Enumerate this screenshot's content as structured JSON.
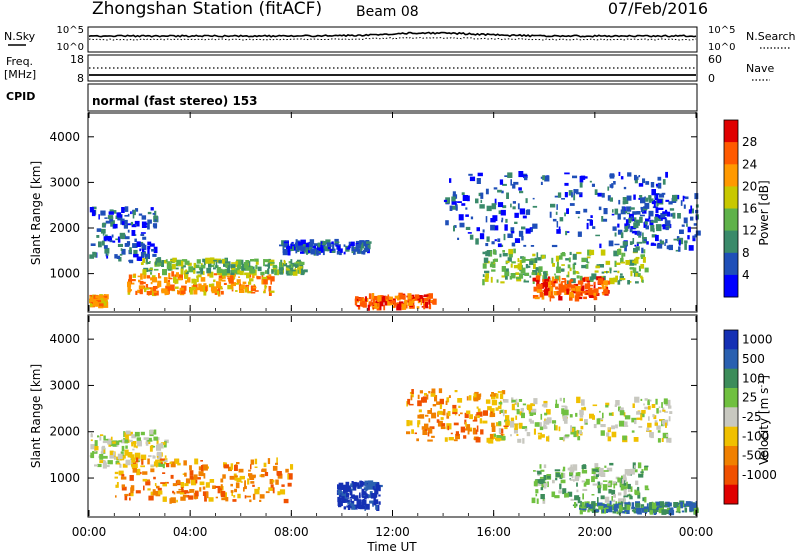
{
  "header": {
    "station": "Zhongshan Station (fitACF)",
    "beam": "Beam 08",
    "date": "07/Feb/2016"
  },
  "top_panel": {
    "left_label": "N.Sky",
    "left_ticks": [
      "10^5",
      "10^0"
    ],
    "right_ticks": [
      "10^5",
      "10^0"
    ],
    "right_label": "N.Search"
  },
  "freq_panel": {
    "left_label_1": "Freq.",
    "left_label_2": "[MHz]",
    "left_ticks": [
      "18",
      "8"
    ],
    "right_ticks": [
      "60",
      "0"
    ],
    "right_label": "Nave"
  },
  "cpid_panel": {
    "left_label": "CPID",
    "mode_text": "normal (fast stereo) 153"
  },
  "colors": {
    "power": [
      "#0000ff",
      "#1f4fb8",
      "#3a8a6a",
      "#5fb24a",
      "#c8c800",
      "#ff9900",
      "#ff5a00",
      "#e00000"
    ],
    "velocity": [
      "#1530b4",
      "#2a60b0",
      "#3c8c5a",
      "#70c040",
      "#c8c8c0",
      "#f0c000",
      "#f08000",
      "#f05000",
      "#e00000"
    ]
  },
  "chart_data": [
    {
      "type": "heatmap",
      "name": "power",
      "ylabel": "Slant Range [km]",
      "ylim": [
        180,
        4500
      ],
      "yticks": [
        "1000",
        "2000",
        "3000",
        "4000"
      ],
      "xlim": [
        "00:00",
        "24:00"
      ],
      "colorbar": {
        "label": "Power [dB]",
        "ticks": [
          "4",
          "8",
          "12",
          "16",
          "20",
          "24",
          "28"
        ]
      },
      "echo_regions": [
        {
          "t0": 0.0,
          "t1": 2.6,
          "r0": 1250,
          "r1": 2450,
          "level": 1
        },
        {
          "t0": 0.0,
          "t1": 0.6,
          "r0": 300,
          "r1": 500,
          "level": 5
        },
        {
          "t0": 1.5,
          "t1": 7.2,
          "r0": 560,
          "r1": 1000,
          "level": 5
        },
        {
          "t0": 2.0,
          "t1": 8.5,
          "r0": 1000,
          "r1": 1300,
          "level": 3
        },
        {
          "t0": 7.5,
          "t1": 11.0,
          "r0": 1450,
          "r1": 1700,
          "level": 1
        },
        {
          "t0": 10.5,
          "t1": 13.6,
          "r0": 250,
          "r1": 520,
          "level": 6
        },
        {
          "t0": 14.0,
          "t1": 22.8,
          "r0": 1600,
          "r1": 3200,
          "level": 1
        },
        {
          "t0": 15.5,
          "t1": 22.0,
          "r0": 800,
          "r1": 1500,
          "level": 3
        },
        {
          "t0": 17.5,
          "t1": 20.5,
          "r0": 450,
          "r1": 900,
          "level": 6
        },
        {
          "t0": 21.0,
          "t1": 24.0,
          "r0": 1500,
          "r1": 2700,
          "level": 1
        }
      ]
    },
    {
      "type": "heatmap",
      "name": "velocity",
      "ylabel": "Slant Range [km]",
      "ylim": [
        180,
        4500
      ],
      "yticks": [
        "1000",
        "2000",
        "3000",
        "4000"
      ],
      "xlim": [
        "00:00",
        "24:00"
      ],
      "xticks": [
        "00:00",
        "04:00",
        "08:00",
        "12:00",
        "16:00",
        "20:00",
        "00:00"
      ],
      "xlabel": "Time UT",
      "colorbar": {
        "label": "Velocity [m s",
        "label_sup": "-1",
        "label_close": "]",
        "ticks": [
          "1000",
          "500",
          "100",
          "25",
          "-25",
          "-100",
          "-500",
          "-1000"
        ]
      },
      "echo_regions": [
        {
          "t0": 0.0,
          "t1": 3.0,
          "r0": 1250,
          "r1": 2000,
          "level": 4
        },
        {
          "t0": 1.0,
          "t1": 8.0,
          "r0": 500,
          "r1": 1400,
          "level": 6
        },
        {
          "t0": 9.8,
          "t1": 11.5,
          "r0": 350,
          "r1": 900,
          "level": 0
        },
        {
          "t0": 12.5,
          "t1": 16.5,
          "r0": 1800,
          "r1": 2900,
          "level": 6
        },
        {
          "t0": 16.0,
          "t1": 23.0,
          "r0": 1800,
          "r1": 2700,
          "level": 4
        },
        {
          "t0": 17.5,
          "t1": 22.0,
          "r0": 500,
          "r1": 1300,
          "level": 3
        },
        {
          "t0": 19.0,
          "t1": 24.0,
          "r0": 250,
          "r1": 450,
          "level": 2
        }
      ]
    }
  ]
}
